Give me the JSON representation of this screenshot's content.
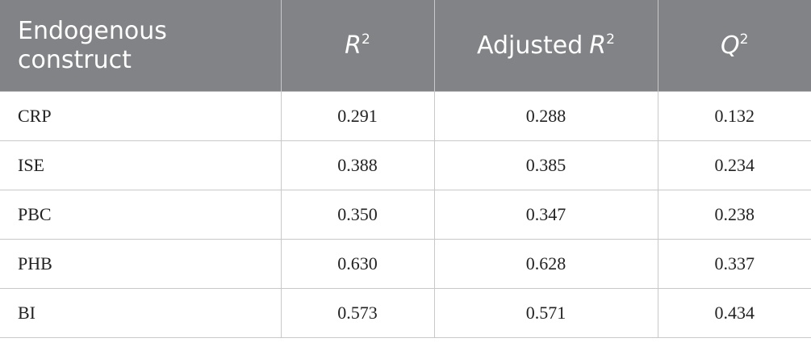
{
  "table": {
    "header": [
      {
        "text": "Endogenous construct"
      },
      {
        "symbol": "R",
        "sup": "2"
      },
      {
        "text": "Adjusted",
        "symbol": "R",
        "sup": "2"
      },
      {
        "symbol": "Q",
        "sup": "2"
      }
    ],
    "rows": [
      [
        "CRP",
        "0.291",
        "0.288",
        "0.132"
      ],
      [
        "ISE",
        "0.388",
        "0.385",
        "0.234"
      ],
      [
        "PBC",
        "0.350",
        "0.347",
        "0.238"
      ],
      [
        "PHB",
        "0.630",
        "0.628",
        "0.337"
      ],
      [
        "BI",
        "0.573",
        "0.571",
        "0.434"
      ]
    ]
  }
}
